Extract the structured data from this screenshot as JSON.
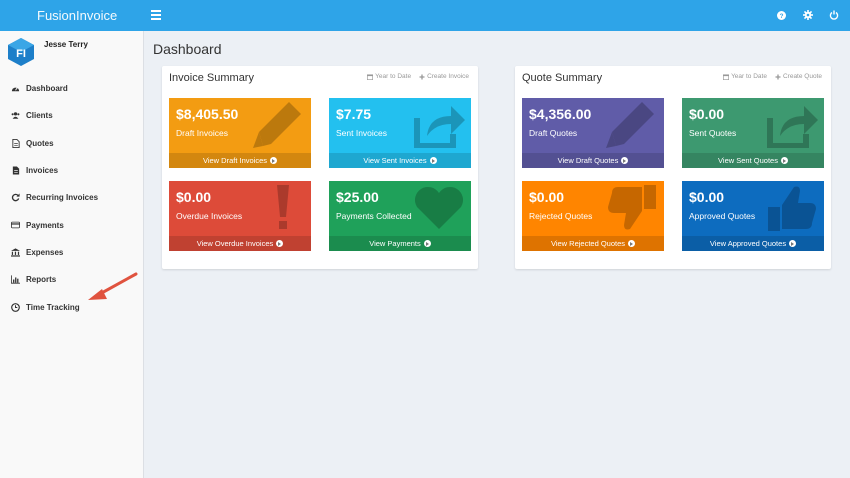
{
  "app": {
    "brand": "FusionInvoice"
  },
  "topbar": {
    "icons": [
      "help-icon",
      "gear-icon",
      "power-icon"
    ]
  },
  "user": {
    "name": "Jesse Terry"
  },
  "sidebar": {
    "items": [
      {
        "label": "Dashboard",
        "icon": "dashboard-icon"
      },
      {
        "label": "Clients",
        "icon": "users-icon"
      },
      {
        "label": "Quotes",
        "icon": "file-icon"
      },
      {
        "label": "Invoices",
        "icon": "file-text-icon"
      },
      {
        "label": "Recurring Invoices",
        "icon": "refresh-icon"
      },
      {
        "label": "Payments",
        "icon": "credit-card-icon"
      },
      {
        "label": "Expenses",
        "icon": "bank-icon"
      },
      {
        "label": "Reports",
        "icon": "bar-chart-icon"
      },
      {
        "label": "Time Tracking",
        "icon": "clock-icon"
      }
    ]
  },
  "page": {
    "title": "Dashboard"
  },
  "invoice_summary": {
    "title": "Invoice Summary",
    "period_link": "Year to Date",
    "create_link": "Create Invoice",
    "tiles": [
      {
        "value": "$8,405.50",
        "label": "Draft Invoices",
        "footer": "View Draft Invoices",
        "color": "#f39c12",
        "icon": "pencil-icon"
      },
      {
        "value": "$7.75",
        "label": "Sent Invoices",
        "footer": "View Sent Invoices",
        "color": "#23c0ef",
        "icon": "share-icon"
      },
      {
        "value": "$0.00",
        "label": "Overdue Invoices",
        "footer": "View Overdue Invoices",
        "color": "#dd4b39",
        "icon": "exclamation-icon"
      },
      {
        "value": "$25.00",
        "label": "Payments Collected",
        "footer": "View Payments",
        "color": "#1fa15a",
        "icon": "heart-icon"
      }
    ]
  },
  "quote_summary": {
    "title": "Quote Summary",
    "period_link": "Year to Date",
    "create_link": "Create Quote",
    "tiles": [
      {
        "value": "$4,356.00",
        "label": "Draft Quotes",
        "footer": "View Draft Quotes",
        "color": "#605ca8",
        "icon": "pencil-icon"
      },
      {
        "value": "$0.00",
        "label": "Sent Quotes",
        "footer": "View Sent Quotes",
        "color": "#3d9970",
        "icon": "share-icon"
      },
      {
        "value": "$0.00",
        "label": "Rejected Quotes",
        "footer": "View Rejected Quotes",
        "color": "#ff8500",
        "icon": "thumbs-down-icon"
      },
      {
        "value": "$0.00",
        "label": "Approved Quotes",
        "footer": "View Approved Quotes",
        "color": "#0d6cbf",
        "icon": "thumbs-up-icon"
      }
    ]
  }
}
